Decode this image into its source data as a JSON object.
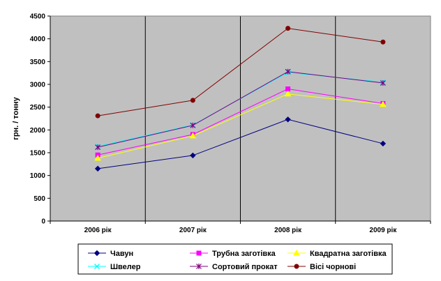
{
  "chart_data": {
    "type": "line",
    "categories": [
      "2006 рік",
      "2007 рік",
      "2008 рік",
      "2009 рік"
    ],
    "ylabel": "грн. / тонну",
    "ylim": [
      0,
      4500
    ],
    "yticks": [
      0,
      500,
      1000,
      1500,
      2000,
      2500,
      3000,
      3500,
      4000,
      4500
    ],
    "grid": true,
    "legend_position": "bottom",
    "series": [
      {
        "name": "Чавун",
        "values": [
          1150,
          1440,
          2230,
          1700
        ],
        "color": "#000080",
        "marker": "diamond"
      },
      {
        "name": "Трубна заготівка",
        "values": [
          1450,
          1900,
          2900,
          2580
        ],
        "color": "#ff00ff",
        "marker": "square"
      },
      {
        "name": "Квадратна заготівка",
        "values": [
          1380,
          1870,
          2790,
          2560
        ],
        "color": "#ffff00",
        "marker": "triangle"
      },
      {
        "name": "Швелер",
        "values": [
          1640,
          2110,
          3260,
          3050
        ],
        "color": "#00ffff",
        "marker": "x"
      },
      {
        "name": "Сортовий прокат",
        "values": [
          1620,
          2100,
          3280,
          3030
        ],
        "color": "#800080",
        "marker": "star"
      },
      {
        "name": "Вісі чорнові",
        "values": [
          2310,
          2650,
          4230,
          3930
        ],
        "color": "#800000",
        "marker": "circle"
      }
    ]
  },
  "colors": {
    "plot_background": "#c0c0c0",
    "grid_line": "#000000"
  }
}
